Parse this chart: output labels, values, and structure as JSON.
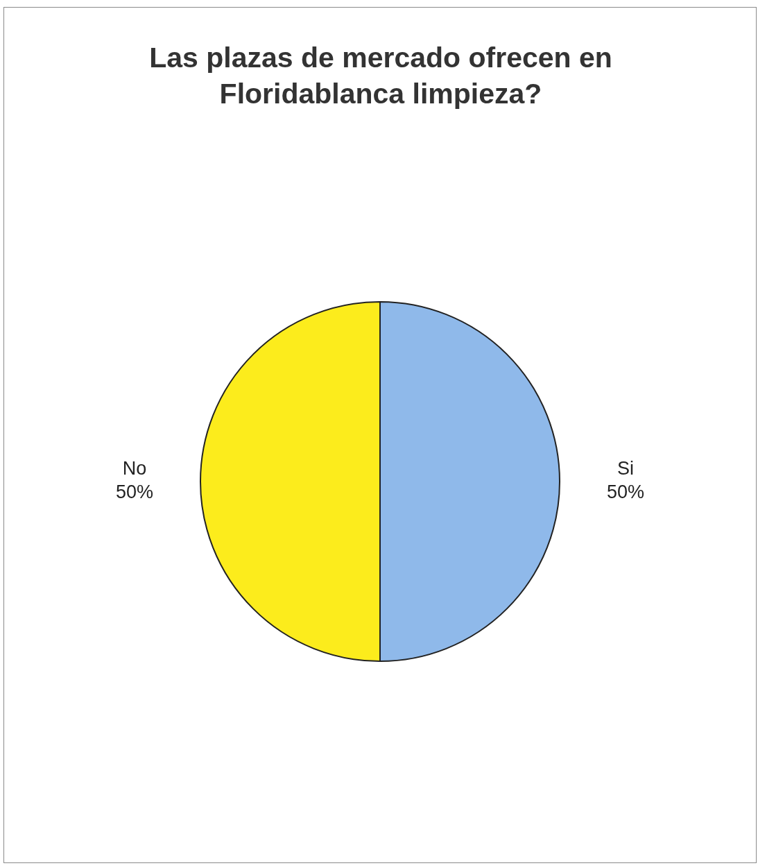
{
  "chart_data": {
    "type": "pie",
    "title": "Las plazas de mercado ofrecen en Floridablanca limpieza?",
    "categories": [
      "Si",
      "No"
    ],
    "values": [
      50,
      50
    ],
    "colors": [
      "#8fb9ea",
      "#fcec1c"
    ],
    "value_labels": [
      "50%",
      "50%"
    ]
  }
}
